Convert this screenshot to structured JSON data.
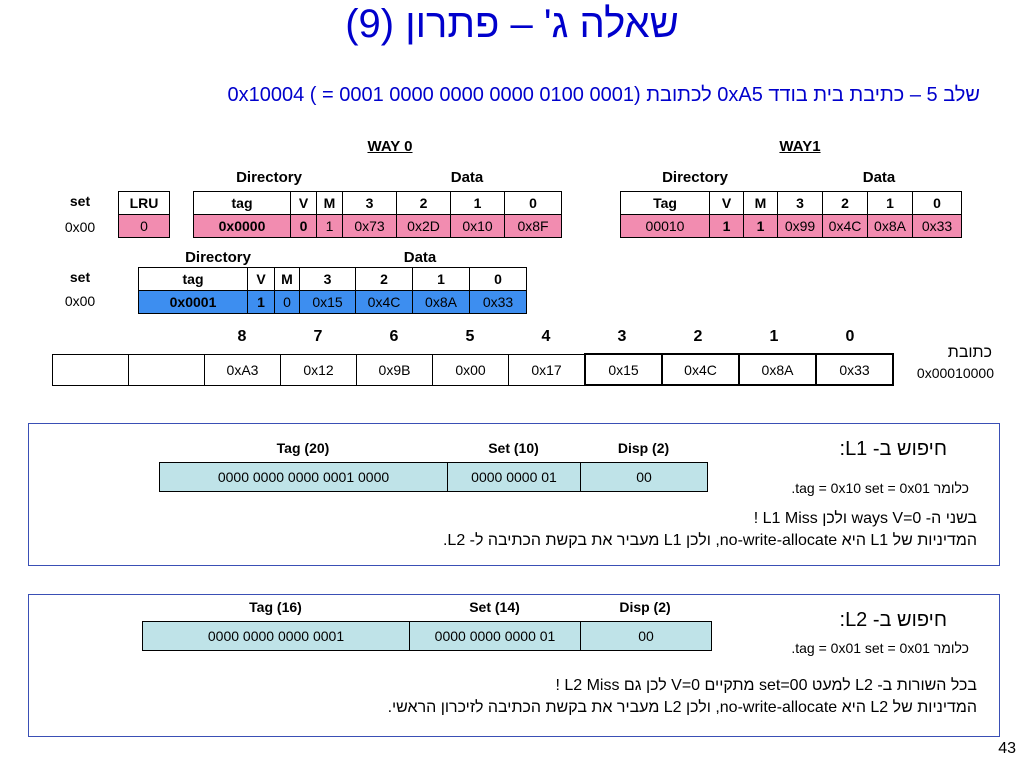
{
  "title": "שאלה ג' – פתרון (9)",
  "subtitle": "שלב 5 – כתיבת בית בודד 0xA5 לכתובת 0x10004 ( = 0001 0000 0000 0000 0100 0001)",
  "l1": {
    "way0_label": "WAY 0",
    "way1_label": "WAY1",
    "directory_label": "Directory",
    "data_label": "Data",
    "set_header": "set",
    "lru_header": "LRU",
    "set_value": "0x00",
    "lru_value": "0",
    "way0": {
      "headers": [
        "tag",
        "V",
        "M",
        "3",
        "2",
        "1",
        "0"
      ],
      "values": [
        "0x0000",
        "0",
        "1",
        "0x73",
        "0x2D",
        "0x10",
        "0x8F"
      ]
    },
    "way1": {
      "headers": [
        "Tag",
        "V",
        "M",
        "3",
        "2",
        "1",
        "0"
      ],
      "values": [
        "00010",
        "1",
        "1",
        "0x99",
        "0x4C",
        "0x8A",
        "0x33"
      ]
    }
  },
  "l2": {
    "directory_label": "Directory",
    "data_label": "Data",
    "set_header": "set",
    "set_value": "0x00",
    "headers": [
      "tag",
      "V",
      "M",
      "3",
      "2",
      "1",
      "0"
    ],
    "values": [
      "0x0001",
      "1",
      "0",
      "0x15",
      "0x4C",
      "0x8A",
      "0x33"
    ]
  },
  "memory": {
    "indices": [
      "8",
      "7",
      "6",
      "5",
      "4",
      "3",
      "2",
      "1",
      "0"
    ],
    "cells": [
      "",
      "",
      "0xA3",
      "0x12",
      "0x9B",
      "0x00",
      "0x17",
      "0x15",
      "0x4C",
      "0x8A",
      "0x33"
    ],
    "label": "כתובת",
    "address": "0x00010000"
  },
  "l1_search": {
    "headers": [
      "Tag (20)",
      "Set (10)",
      "Disp (2)"
    ],
    "values": [
      "0000 0000 0000 0001 0000",
      "0000 0000 01",
      "00"
    ],
    "title": "חיפוש ב- L1:",
    "meaning": "כלומר tag = 0x10  set = 0x01.",
    "line1": "בשני ה- ways V=0 ולכן L1 Miss !",
    "line2": "המדיניות של L1 היא no-write-allocate, ולכן L1 מעביר את בקשת הכתיבה ל- L2."
  },
  "l2_search": {
    "headers": [
      "Tag (16)",
      "Set (14)",
      "Disp (2)"
    ],
    "values": [
      "0000 0000 0000 0001",
      "0000 0000 0000 01",
      "00"
    ],
    "title": "חיפוש ב- L2:",
    "meaning": "כלומר tag = 0x01  set = 0x01.",
    "line1": "בכל השורות ב- L2 למעט set=00 מתקיים V=0 לכן גם L2 Miss !",
    "line2": "המדיניות של L2 היא no-write-allocate, ולכן L2 מעביר את בקשת הכתיבה לזיכרון הראשי."
  },
  "page_number": "43"
}
